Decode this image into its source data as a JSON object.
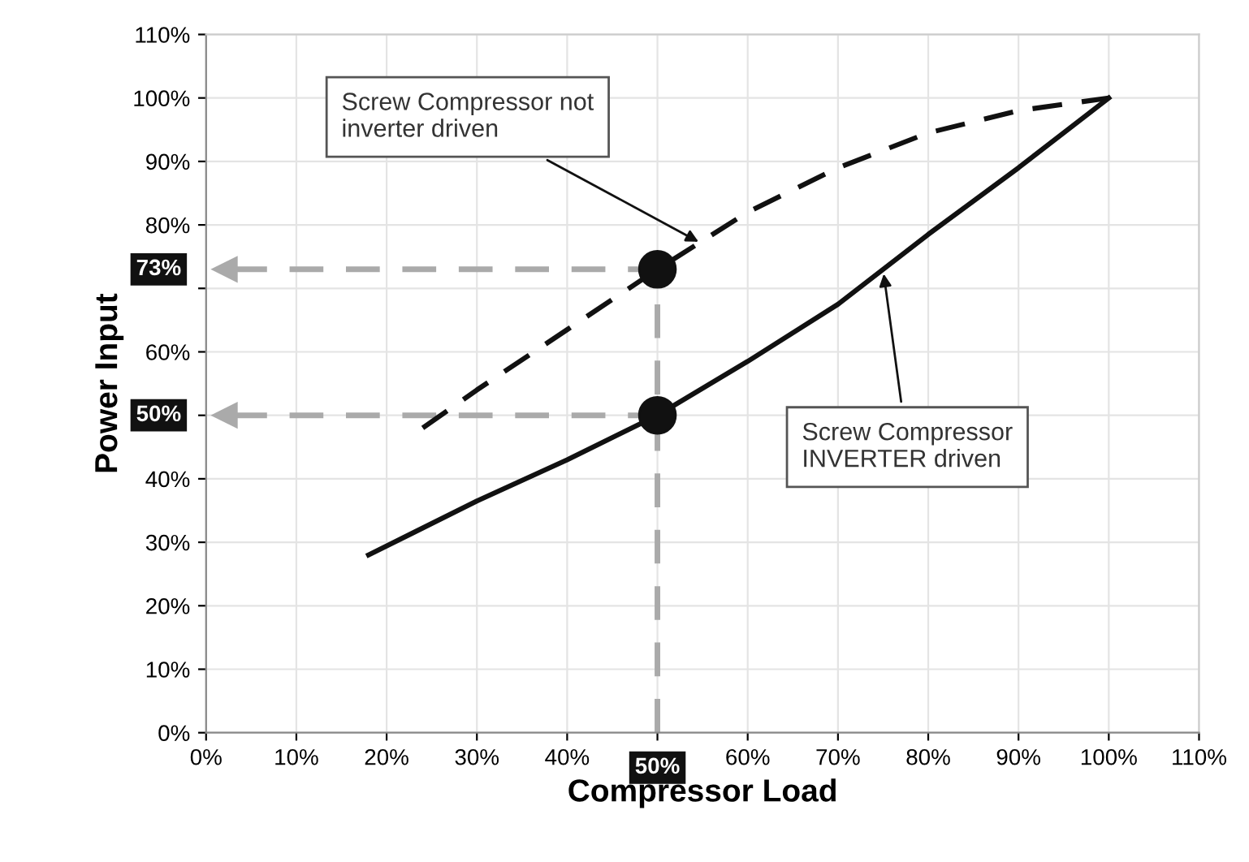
{
  "chart_data": {
    "type": "line",
    "xlabel": "Compressor Load",
    "ylabel": "Power Input",
    "xlim": [
      0,
      110
    ],
    "ylim": [
      0,
      110
    ],
    "xticks": [
      {
        "value": 0,
        "label": "0%"
      },
      {
        "value": 10,
        "label": "10%"
      },
      {
        "value": 20,
        "label": "20%"
      },
      {
        "value": 30,
        "label": "30%"
      },
      {
        "value": 40,
        "label": "40%"
      },
      {
        "value": 50,
        "label": null
      },
      {
        "value": 60,
        "label": "60%"
      },
      {
        "value": 70,
        "label": "70%"
      },
      {
        "value": 80,
        "label": "80%"
      },
      {
        "value": 90,
        "label": "90%"
      },
      {
        "value": 100,
        "label": "100%"
      },
      {
        "value": 110,
        "label": "110%"
      }
    ],
    "yticks": [
      {
        "value": 0,
        "label": "0%"
      },
      {
        "value": 10,
        "label": "10%"
      },
      {
        "value": 20,
        "label": "20%"
      },
      {
        "value": 30,
        "label": "30%"
      },
      {
        "value": 40,
        "label": "40%"
      },
      {
        "value": 50,
        "label": null
      },
      {
        "value": 60,
        "label": "60%"
      },
      {
        "value": 70,
        "label": null
      },
      {
        "value": 80,
        "label": "80%"
      },
      {
        "value": 90,
        "label": "90%"
      },
      {
        "value": 100,
        "label": "100%"
      },
      {
        "value": 110,
        "label": "110%"
      }
    ],
    "grid": true,
    "series": [
      {
        "color": "#111111",
        "line_style": "dashed",
        "marker": "none",
        "x": [
          24,
          30,
          40,
          50,
          55,
          60,
          70,
          80,
          90,
          100
        ],
        "values": [
          48,
          54,
          63.5,
          73,
          77.5,
          82,
          89,
          94.5,
          98,
          100
        ]
      },
      {
        "color": "#111111",
        "line_style": "solid",
        "marker": "none",
        "x": [
          18,
          30,
          40,
          50,
          60,
          70,
          80,
          90,
          100
        ],
        "values": [
          28,
          36.5,
          43,
          50,
          58.5,
          67.5,
          78.5,
          89,
          100
        ]
      },
      {
        "type": "scatter",
        "color": "#111111",
        "marker": "circle",
        "x": [
          50,
          50
        ],
        "values": [
          73,
          50
        ]
      }
    ],
    "ref_lines": [
      {
        "axis": "x",
        "value": 50,
        "label": "50%",
        "color": "#aaaaaa",
        "line_style": "dashed"
      },
      {
        "axis": "y",
        "value": 73,
        "label": "73%",
        "color": "#aaaaaa",
        "line_style": "dashed"
      },
      {
        "axis": "y",
        "value": 50,
        "label": "50%",
        "color": "#aaaaaa",
        "line_style": "dashed"
      }
    ],
    "annotations": [
      {
        "text": "Screw Compressor not\ninverter driven",
        "x": 55,
        "y": 77
      },
      {
        "text": "Screw Compressor\nINVERTER driven",
        "x": 75,
        "y": 73
      }
    ]
  }
}
